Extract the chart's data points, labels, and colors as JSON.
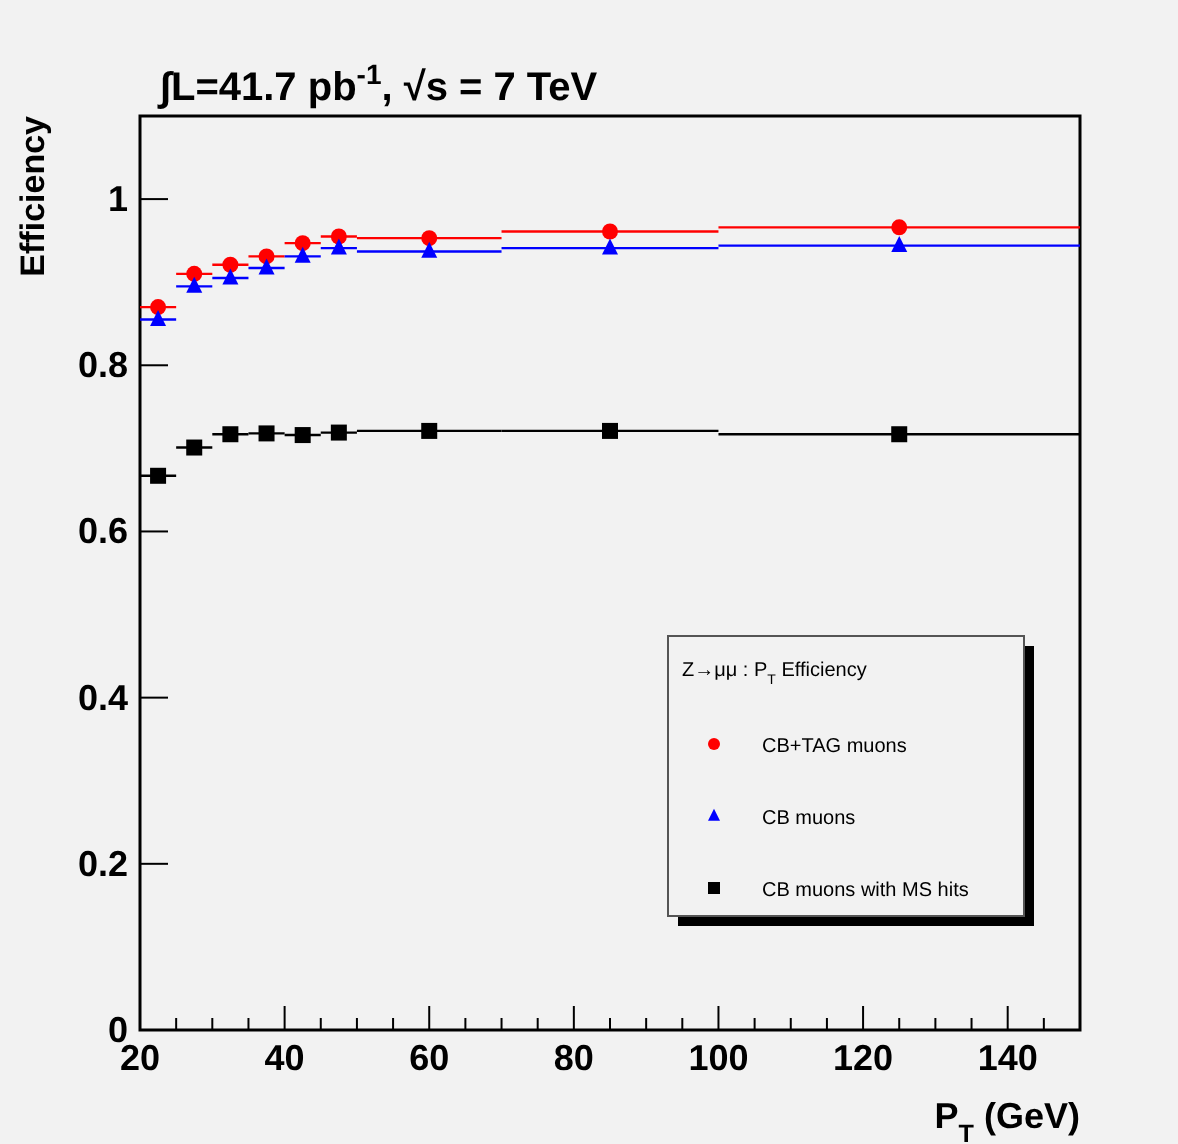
{
  "chart_data": {
    "type": "scatter",
    "title": "∫L=41.7 pb$^{-1}$, √s = 7 TeV",
    "xlabel": "P$_{T}$ (GeV)",
    "ylabel": "Efficiency",
    "legend_title": "Z→μμ : P$_{T}$ Efficiency",
    "series": [
      {
        "name": "CB+TAG muons",
        "color": "#ff0000",
        "marker": "circle",
        "x": [
          22.5,
          27.5,
          32.5,
          37.5,
          42.5,
          47.5,
          60,
          85,
          125
        ],
        "xerrors": [
          2.5,
          2.5,
          2.5,
          2.5,
          2.5,
          2.5,
          10,
          15,
          25
        ],
        "values": [
          0.87,
          0.91,
          0.921,
          0.931,
          0.947,
          0.955,
          0.953,
          0.961,
          0.966
        ]
      },
      {
        "name": "CB muons",
        "color": "#0000ff",
        "marker": "triangle",
        "x": [
          22.5,
          27.5,
          32.5,
          37.5,
          42.5,
          47.5,
          60,
          85,
          125
        ],
        "xerrors": [
          2.5,
          2.5,
          2.5,
          2.5,
          2.5,
          2.5,
          10,
          15,
          25
        ],
        "values": [
          0.855,
          0.895,
          0.905,
          0.917,
          0.931,
          0.941,
          0.937,
          0.941,
          0.944
        ]
      },
      {
        "name": "CB muons with MS hits",
        "color": "#000000",
        "marker": "square",
        "x": [
          22.5,
          27.5,
          32.5,
          37.5,
          42.5,
          47.5,
          60,
          85,
          125
        ],
        "xerrors": [
          2.5,
          2.5,
          2.5,
          2.5,
          2.5,
          2.5,
          10,
          15,
          25
        ],
        "values": [
          0.667,
          0.701,
          0.717,
          0.718,
          0.716,
          0.719,
          0.721,
          0.721,
          0.717
        ]
      }
    ],
    "xlim": [
      20,
      150
    ],
    "ylim": [
      0,
      1.1
    ],
    "xticks": [
      20,
      {
        "value": 25,
        "label": null
      },
      {
        "value": 30,
        "label": null
      },
      {
        "value": 35,
        "label": null
      },
      40,
      {
        "value": 45,
        "label": null
      },
      {
        "value": 50,
        "label": null
      },
      {
        "value": 55,
        "label": null
      },
      60,
      {
        "value": 65,
        "label": null
      },
      {
        "value": 70,
        "label": null
      },
      {
        "value": 75,
        "label": null
      },
      80,
      {
        "value": 85,
        "label": null
      },
      {
        "value": 90,
        "label": null
      },
      {
        "value": 95,
        "label": null
      },
      100,
      {
        "value": 105,
        "label": null
      },
      {
        "value": 110,
        "label": null
      },
      {
        "value": 115,
        "label": null
      },
      120,
      {
        "value": 125,
        "label": null
      },
      {
        "value": 130,
        "label": null
      },
      {
        "value": 135,
        "label": null
      },
      140,
      {
        "value": 145,
        "label": null
      }
    ],
    "yticks": [
      0,
      0.2,
      0.4,
      0.6,
      0.8,
      1
    ],
    "grid": false,
    "legend": "bottom right"
  }
}
